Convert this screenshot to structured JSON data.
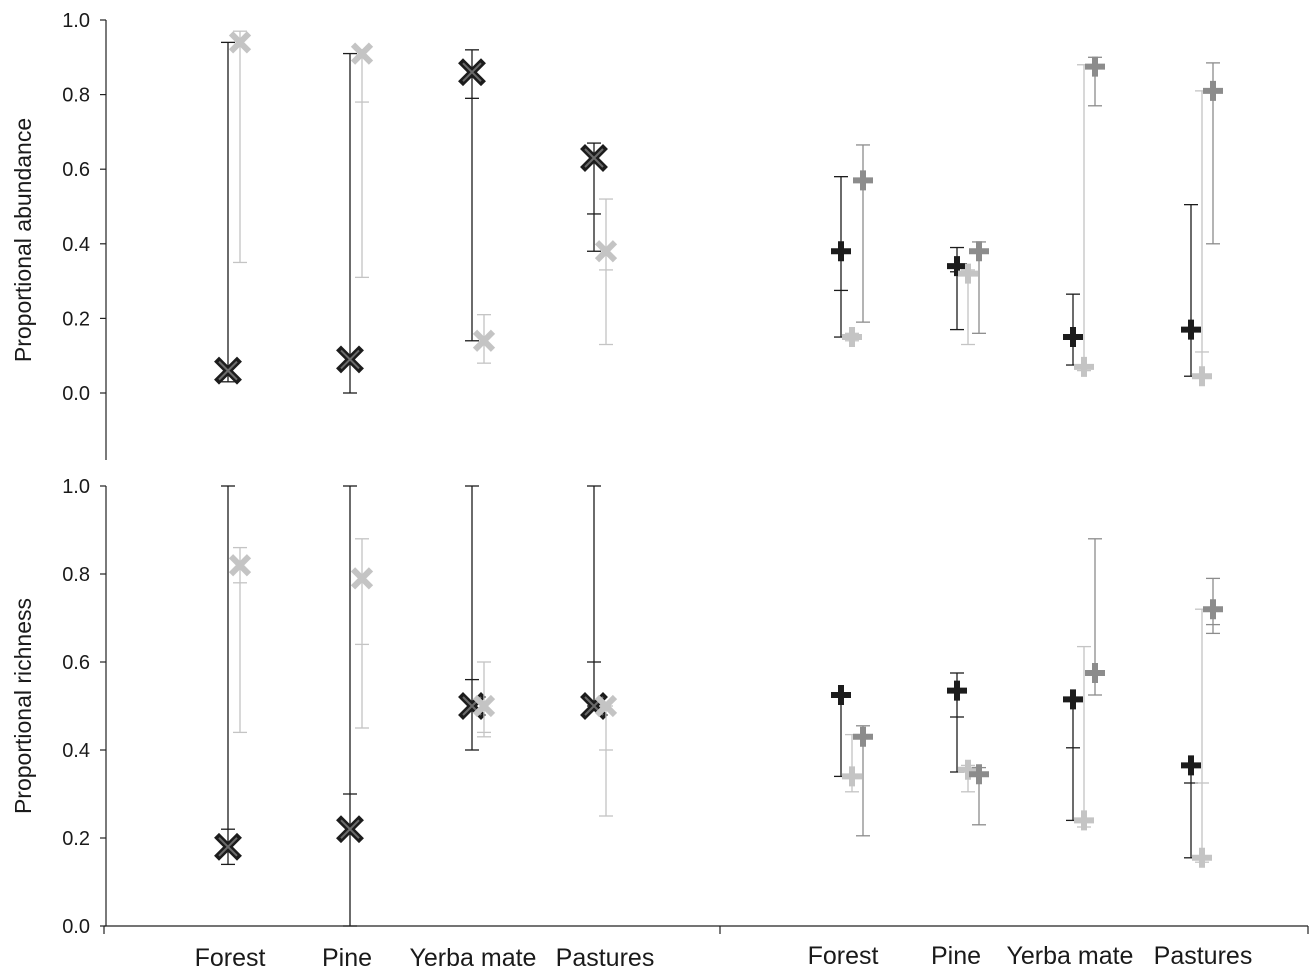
{
  "categories": [
    "Forest",
    "Pine",
    "Yerba mate",
    "Pastures"
  ],
  "colors": {
    "black": "#1c1c1c",
    "dark_gray": "#8c8c8c",
    "light_gray": "#c4c4c4",
    "axis": "#222222"
  },
  "chart_data": [
    {
      "type": "scatter",
      "title": "",
      "ylabel": "Proportional abundance",
      "ylim": [
        0,
        1
      ],
      "yticks": [
        "0.0",
        "0.2",
        "0.4",
        "0.6",
        "0.8",
        "1.0"
      ],
      "grid": false,
      "groups": [
        {
          "marker": "x",
          "series": [
            {
              "color": "black",
              "values": [
                {
                  "category": "Forest",
                  "y": 0.06,
                  "low": 0.03,
                  "high": 0.94
                },
                {
                  "category": "Pine",
                  "y": 0.09,
                  "low": 0.0,
                  "high": 0.91
                },
                {
                  "category": "Yerba mate",
                  "y": 0.86,
                  "low": 0.14,
                  "high": 0.92,
                  "mid_tick": 0.79
                },
                {
                  "category": "Pastures",
                  "y": 0.63,
                  "low": 0.38,
                  "high": 0.67,
                  "mid_tick": 0.48
                }
              ]
            },
            {
              "color": "light_gray",
              "values": [
                {
                  "category": "Forest",
                  "y": 0.94,
                  "low": 0.35,
                  "high": 0.97
                },
                {
                  "category": "Pine",
                  "y": 0.91,
                  "low": 0.31,
                  "high": 0.92,
                  "mid_tick": 0.78
                },
                {
                  "category": "Yerba mate",
                  "y": 0.14,
                  "low": 0.08,
                  "high": 0.21
                },
                {
                  "category": "Pastures",
                  "y": 0.38,
                  "low": 0.13,
                  "high": 0.52,
                  "mid_tick": 0.33
                }
              ]
            }
          ]
        },
        {
          "marker": "plus",
          "series": [
            {
              "color": "black",
              "values": [
                {
                  "category": "Forest",
                  "y": 0.38,
                  "low": 0.15,
                  "high": 0.58,
                  "mid_tick": 0.275
                },
                {
                  "category": "Pine",
                  "y": 0.34,
                  "low": 0.17,
                  "high": 0.39,
                  "mid_tick": 0.325
                },
                {
                  "category": "Yerba mate",
                  "y": 0.15,
                  "low": 0.075,
                  "high": 0.265
                },
                {
                  "category": "Pastures",
                  "y": 0.17,
                  "low": 0.045,
                  "high": 0.505
                }
              ]
            },
            {
              "color": "light_gray",
              "values": [
                {
                  "category": "Forest",
                  "y": 0.15,
                  "low": 0.14,
                  "high": 0.16
                },
                {
                  "category": "Pine",
                  "y": 0.32,
                  "low": 0.13,
                  "high": 0.33
                },
                {
                  "category": "Yerba mate",
                  "y": 0.07,
                  "low": 0.06,
                  "high": 0.88
                },
                {
                  "category": "Pastures",
                  "y": 0.045,
                  "low": 0.04,
                  "high": 0.81,
                  "mid_tick": 0.11
                }
              ]
            },
            {
              "color": "dark_gray",
              "values": [
                {
                  "category": "Forest",
                  "y": 0.57,
                  "low": 0.19,
                  "high": 0.665
                },
                {
                  "category": "Pine",
                  "y": 0.38,
                  "low": 0.16,
                  "high": 0.405
                },
                {
                  "category": "Yerba mate",
                  "y": 0.875,
                  "low": 0.77,
                  "high": 0.9
                },
                {
                  "category": "Pastures",
                  "y": 0.81,
                  "low": 0.4,
                  "high": 0.885
                }
              ]
            }
          ]
        }
      ]
    },
    {
      "type": "scatter",
      "title": "",
      "ylabel": "Proportional richness",
      "ylim": [
        0,
        1
      ],
      "yticks": [
        "0.0",
        "0.2",
        "0.4",
        "0.6",
        "0.8",
        "1.0"
      ],
      "xlabels_left": [
        "Forest",
        "Pine",
        "Yerba mate",
        "Pastures"
      ],
      "xlabels_right": [
        "Forest",
        "Pine",
        "Yerba mate",
        "Pastures"
      ],
      "grid": false,
      "groups": [
        {
          "marker": "x",
          "series": [
            {
              "color": "black",
              "values": [
                {
                  "category": "Forest",
                  "y": 0.18,
                  "low": 0.14,
                  "high": 1.0,
                  "mid_tick": 0.22
                },
                {
                  "category": "Pine",
                  "y": 0.22,
                  "low": 0.0,
                  "high": 1.0,
                  "mid_tick": 0.3
                },
                {
                  "category": "Yerba mate",
                  "y": 0.5,
                  "low": 0.4,
                  "high": 1.0,
                  "mid_tick": 0.56
                },
                {
                  "category": "Pastures",
                  "y": 0.5,
                  "low": 0.5,
                  "high": 1.0,
                  "mid_tick": 0.6
                }
              ]
            },
            {
              "color": "light_gray",
              "values": [
                {
                  "category": "Forest",
                  "y": 0.82,
                  "low": 0.44,
                  "high": 0.86,
                  "mid_tick": 0.78
                },
                {
                  "category": "Pine",
                  "y": 0.79,
                  "low": 0.45,
                  "high": 0.88,
                  "mid_tick": 0.64
                },
                {
                  "category": "Yerba mate",
                  "y": 0.5,
                  "low": 0.43,
                  "high": 0.6,
                  "mid_tick": 0.44
                },
                {
                  "category": "Pastures",
                  "y": 0.5,
                  "low": 0.25,
                  "high": 0.5,
                  "mid_tick": 0.4
                }
              ]
            }
          ]
        },
        {
          "marker": "plus",
          "series": [
            {
              "color": "black",
              "values": [
                {
                  "category": "Forest",
                  "y": 0.525,
                  "low": 0.34,
                  "high": 0.525
                },
                {
                  "category": "Pine",
                  "y": 0.535,
                  "low": 0.35,
                  "high": 0.575,
                  "mid_tick": 0.475
                },
                {
                  "category": "Yerba mate",
                  "y": 0.515,
                  "low": 0.24,
                  "high": 0.515,
                  "mid_tick": 0.405
                },
                {
                  "category": "Pastures",
                  "y": 0.365,
                  "low": 0.155,
                  "high": 0.365,
                  "mid_tick": 0.325
                }
              ]
            },
            {
              "color": "light_gray",
              "values": [
                {
                  "category": "Forest",
                  "y": 0.34,
                  "low": 0.305,
                  "high": 0.435
                },
                {
                  "category": "Pine",
                  "y": 0.355,
                  "low": 0.305,
                  "high": 0.365
                },
                {
                  "category": "Yerba mate",
                  "y": 0.24,
                  "low": 0.225,
                  "high": 0.635
                },
                {
                  "category": "Pastures",
                  "y": 0.155,
                  "low": 0.145,
                  "high": 0.72,
                  "mid_tick": 0.325
                }
              ]
            },
            {
              "color": "dark_gray",
              "values": [
                {
                  "category": "Forest",
                  "y": 0.43,
                  "low": 0.205,
                  "high": 0.455
                },
                {
                  "category": "Pine",
                  "y": 0.345,
                  "low": 0.23,
                  "high": 0.36
                },
                {
                  "category": "Yerba mate",
                  "y": 0.575,
                  "low": 0.525,
                  "high": 0.88
                },
                {
                  "category": "Pastures",
                  "y": 0.72,
                  "low": 0.665,
                  "high": 0.79,
                  "mid_tick": 0.685
                }
              ]
            }
          ]
        }
      ]
    }
  ]
}
